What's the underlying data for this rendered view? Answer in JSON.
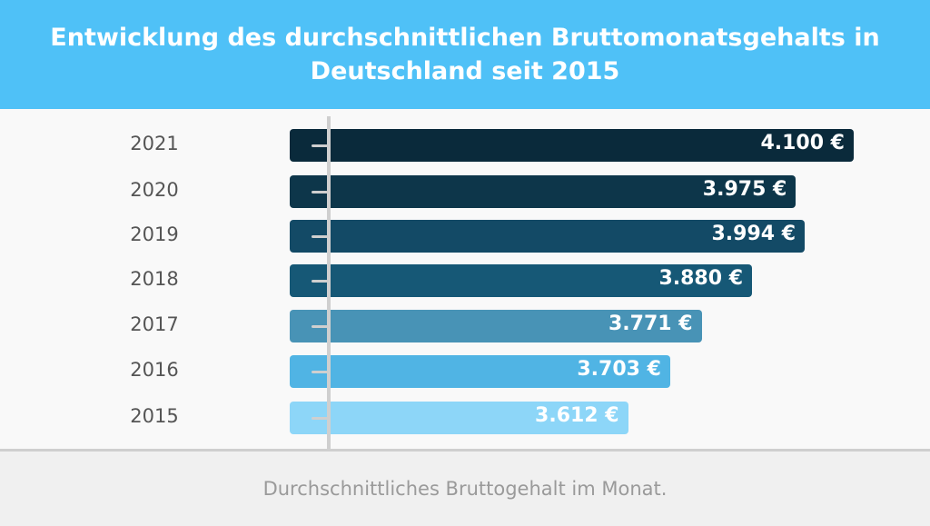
{
  "header": {
    "title": "Entwicklung des durchschnittlichen Bruttomonatsgehalts in Deutschland seit 2015",
    "color": "#4fc1f7"
  },
  "footer": {
    "caption": "Durchschnittliches Bruttogehalt im Monat."
  },
  "chart_data": {
    "type": "bar",
    "orientation": "horizontal",
    "title": "Entwicklung des durchschnittlichen Bruttomonatsgehalts in Deutschland seit 2015",
    "categories": [
      "2021",
      "2020",
      "2019",
      "2018",
      "2017",
      "2016",
      "2015"
    ],
    "values": [
      4100,
      3975,
      3994,
      3880,
      3771,
      3703,
      3612
    ],
    "labels": [
      "4.100 €",
      "3.975 €",
      "3.994 €",
      "3.880 €",
      "3.771 €",
      "3.703 €",
      "3.612 €"
    ],
    "colors": [
      "#0a2a3b",
      "#0d364a",
      "#134a66",
      "#165876",
      "#4893b6",
      "#50b4e4",
      "#8dd6f8"
    ],
    "unit": "€",
    "xlim": [
      2880,
      4100
    ],
    "grid": false,
    "legend": "none"
  }
}
